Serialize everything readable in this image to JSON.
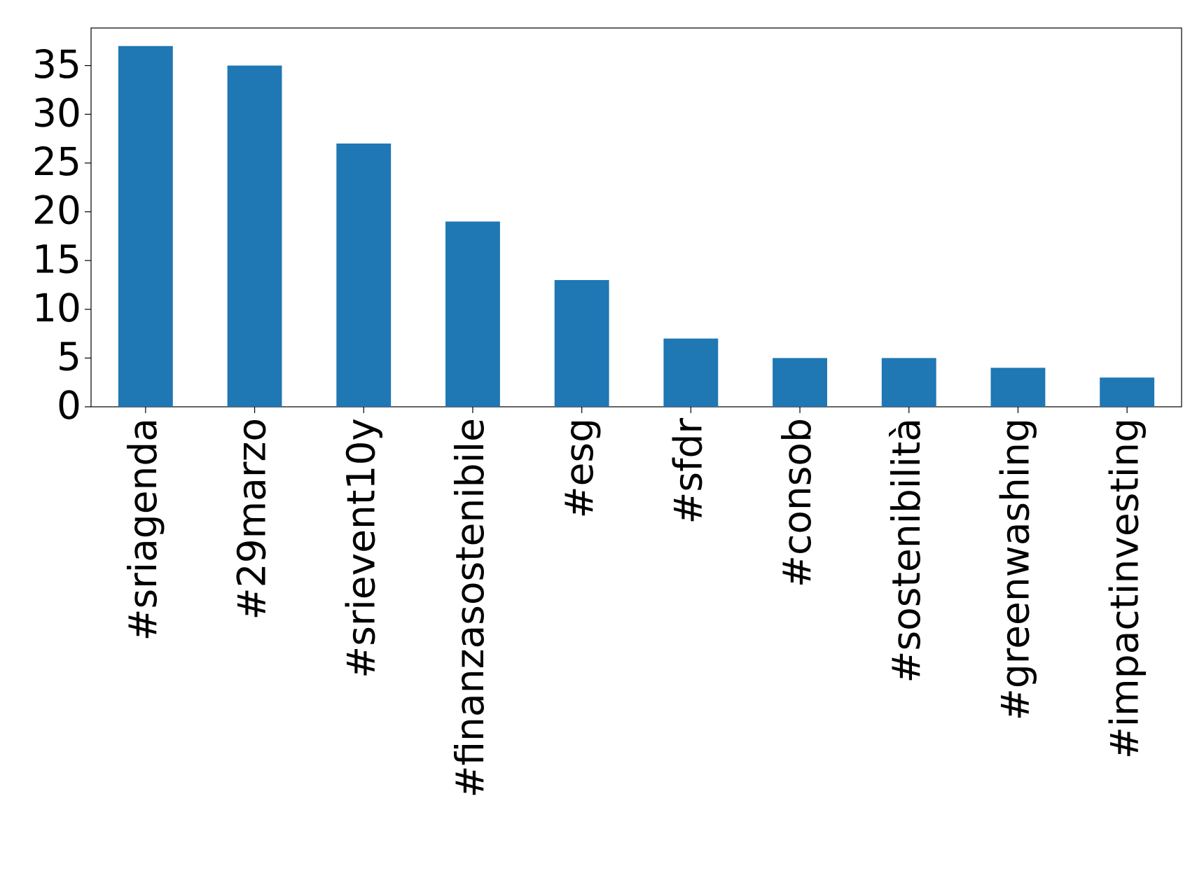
{
  "chart_data": {
    "type": "bar",
    "categories": [
      "#sriagenda",
      "#29marzo",
      "#srievent10y",
      "#finanzasostenibile",
      "#esg",
      "#sfdr",
      "#consob",
      "#sostenibilità",
      "#greenwashing",
      "#impactinvesting"
    ],
    "values": [
      37,
      35,
      27,
      19,
      13,
      7,
      5,
      5,
      4,
      3
    ],
    "color": "#1f77b4",
    "ylim": [
      0,
      38.85
    ],
    "yticks": [
      0,
      5,
      10,
      15,
      20,
      25,
      30,
      35
    ],
    "grid": false
  }
}
